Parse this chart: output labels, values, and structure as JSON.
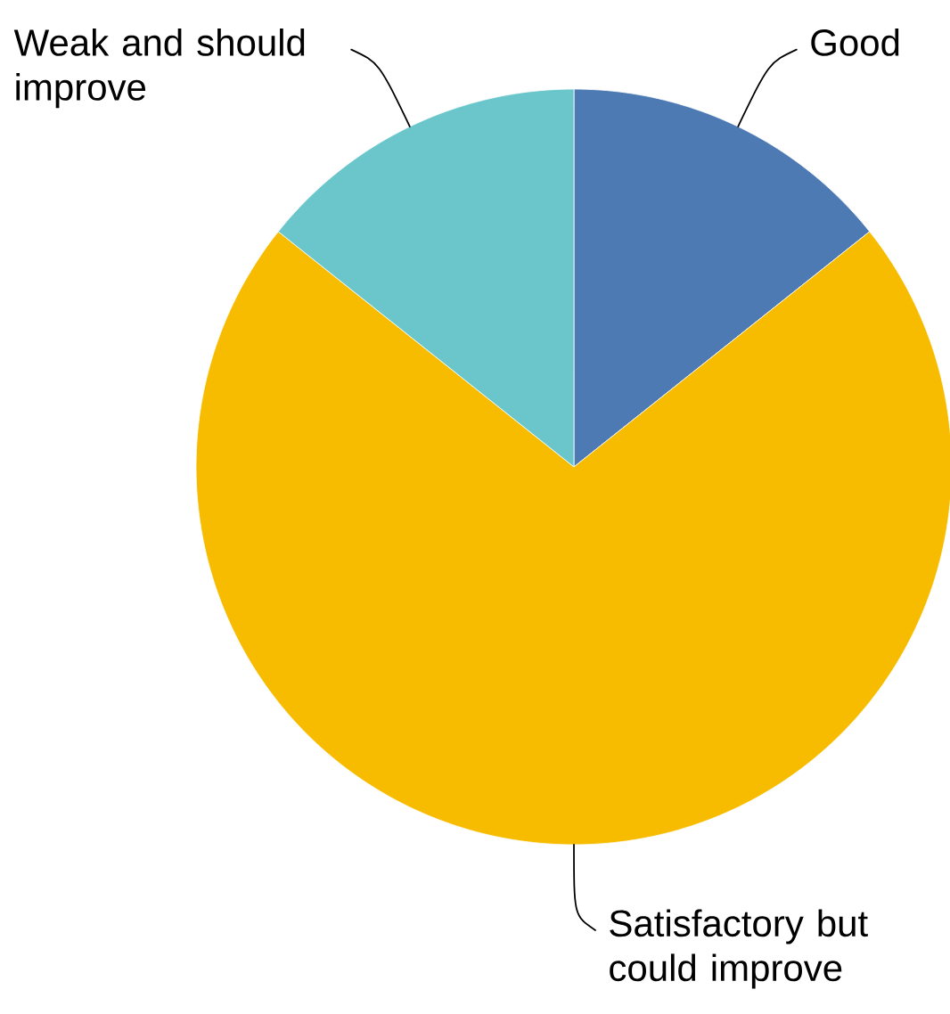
{
  "chart_data": {
    "type": "pie",
    "categories": [
      "Good",
      "Satisfactory but could improve",
      "Weak and should improve"
    ],
    "values": [
      14.3,
      71.4,
      14.3
    ],
    "colors": [
      "#4e7ab4",
      "#f7bc00",
      "#6bc6cb"
    ]
  }
}
